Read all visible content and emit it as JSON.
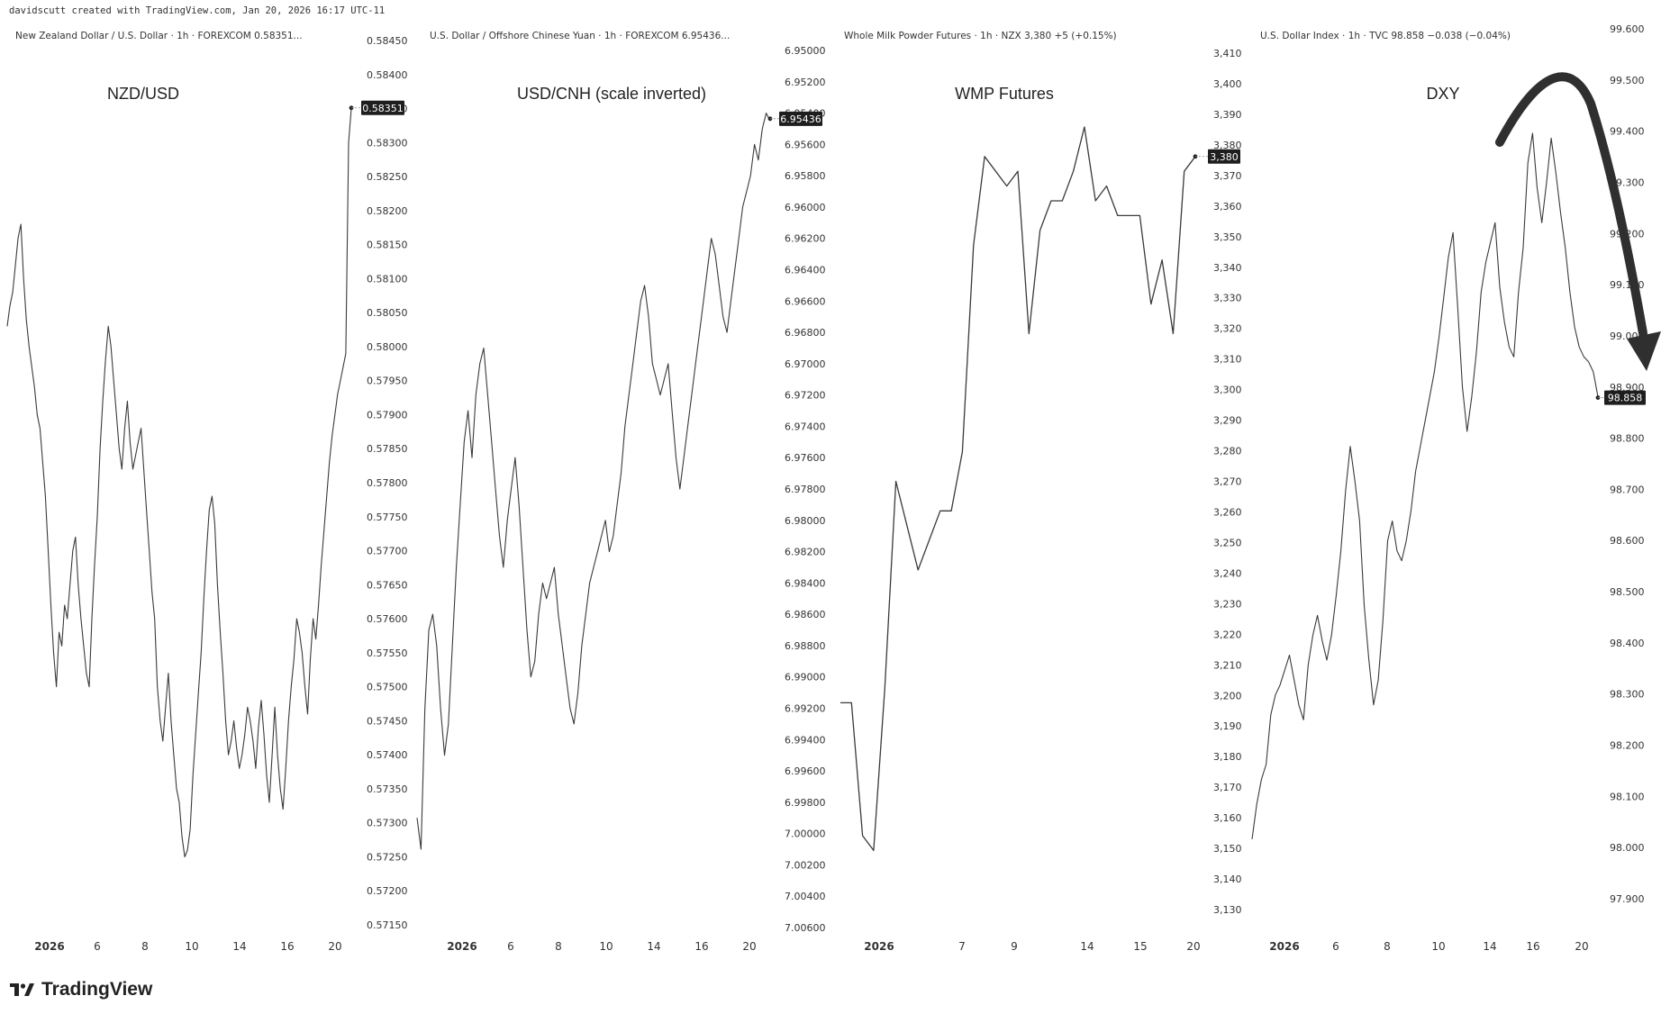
{
  "header": {
    "attribution": "davidscutt created with TradingView.com, Jan 20, 2026 16:17 UTC-11"
  },
  "footer": {
    "brand": "TradingView",
    "logo_icon": "tradingview-logo-icon"
  },
  "panels": [
    {
      "legend": "New Zealand Dollar / U.S. Dollar · 1h · FOREXCOM  0.58351...",
      "title": "NZD/USD",
      "last_label": "0.58351"
    },
    {
      "legend": "U.S. Dollar / Offshore Chinese Yuan · 1h · FOREXCOM  6.95436...",
      "title": "USD/CNH (scale inverted)",
      "last_label": "6.95436"
    },
    {
      "legend": "Whole Milk Powder Futures · 1h · NZX  3,380  +5 (+0.15%)",
      "title": "WMP Futures",
      "last_label": "3,380"
    },
    {
      "legend": "U.S. Dollar Index · 1h · TVC  98.858  −0.038 (−0.04%)",
      "title": "DXY",
      "last_label": "98.858",
      "annotation": "curved-down-arrow"
    }
  ],
  "chart_data": [
    {
      "type": "line",
      "title": "NZD/USD",
      "x_ticks": [
        "2026",
        "6",
        "8",
        "10",
        "14",
        "16",
        "20"
      ],
      "y_ticks": [
        "0.58450",
        "0.58400",
        "0.58350",
        "0.58300",
        "0.58250",
        "0.58200",
        "0.58150",
        "0.58100",
        "0.58050",
        "0.58000",
        "0.57950",
        "0.57900",
        "0.57850",
        "0.57800",
        "0.57750",
        "0.57700",
        "0.57650",
        "0.57600",
        "0.57550",
        "0.57500",
        "0.57450",
        "0.57400",
        "0.57350",
        "0.57300",
        "0.57250",
        "0.57200",
        "0.57150"
      ],
      "ylim": [
        0.5715,
        0.5845
      ],
      "last_value": 0.58351,
      "series": [
        {
          "values": [
            0.5803,
            0.5806,
            0.5808,
            0.5812,
            0.5816,
            0.5818,
            0.581,
            0.5804,
            0.58,
            0.5797,
            0.5794,
            0.579,
            0.5788,
            0.5783,
            0.5778,
            0.577,
            0.5762,
            0.5755,
            0.575,
            0.5758,
            0.5756,
            0.5762,
            0.576,
            0.5765,
            0.577,
            0.5772,
            0.5765,
            0.576,
            0.5756,
            0.5752,
            0.575,
            0.576,
            0.5768,
            0.5775,
            0.5785,
            0.5792,
            0.5798,
            0.5803,
            0.58,
            0.5795,
            0.579,
            0.5785,
            0.5782,
            0.5788,
            0.5792,
            0.5786,
            0.5782,
            0.5784,
            0.5786,
            0.5788,
            0.5782,
            0.5776,
            0.577,
            0.5764,
            0.576,
            0.575,
            0.5745,
            0.5742,
            0.5747,
            0.5752,
            0.5745,
            0.574,
            0.5735,
            0.5733,
            0.5728,
            0.5725,
            0.5726,
            0.5729,
            0.5737,
            0.5743,
            0.5749,
            0.5755,
            0.5763,
            0.577,
            0.5776,
            0.5778,
            0.5774,
            0.5765,
            0.5758,
            0.5752,
            0.5745,
            0.574,
            0.5742,
            0.5745,
            0.5741,
            0.5738,
            0.574,
            0.5743,
            0.5747,
            0.5745,
            0.5742,
            0.5738,
            0.5744,
            0.5748,
            0.5743,
            0.5737,
            0.5733,
            0.574,
            0.5747,
            0.574,
            0.5735,
            0.5732,
            0.5738,
            0.5745,
            0.575,
            0.5754,
            0.576,
            0.5758,
            0.5755,
            0.575,
            0.5746,
            0.5754,
            0.576,
            0.5757,
            0.5762,
            0.5768,
            0.5773,
            0.5778,
            0.5783,
            0.5787,
            0.579,
            0.5793,
            0.5795,
            0.5797,
            0.5799,
            0.583,
            0.5835
          ]
        }
      ]
    },
    {
      "type": "line",
      "title": "USD/CNH (scale inverted)",
      "y_inverted": true,
      "x_ticks": [
        "2026",
        "6",
        "8",
        "10",
        "14",
        "16",
        "20"
      ],
      "y_ticks": [
        "6.95000",
        "6.95200",
        "6.95400",
        "6.95600",
        "6.95800",
        "6.96000",
        "6.96200",
        "6.96400",
        "6.96600",
        "6.96800",
        "6.97000",
        "6.97200",
        "6.97400",
        "6.97600",
        "6.97800",
        "6.98000",
        "6.98200",
        "6.98400",
        "6.98600",
        "6.98800",
        "6.99000",
        "6.99200",
        "6.99400",
        "6.99600",
        "6.99800",
        "7.00000",
        "7.00200",
        "7.00400",
        "7.00600"
      ],
      "ylim": [
        6.95,
        7.006
      ],
      "last_value": 6.95436,
      "series": [
        {
          "values": [
            6.999,
            7.001,
            6.992,
            6.987,
            6.986,
            6.988,
            6.992,
            6.995,
            6.993,
            6.988,
            6.983,
            6.979,
            6.975,
            6.973,
            6.976,
            6.972,
            6.97,
            6.969,
            6.972,
            6.975,
            6.978,
            6.981,
            6.983,
            6.98,
            6.978,
            6.976,
            6.979,
            6.983,
            6.987,
            6.99,
            6.989,
            6.986,
            6.984,
            6.985,
            6.984,
            6.983,
            6.986,
            6.988,
            6.99,
            6.992,
            6.993,
            6.991,
            6.988,
            6.986,
            6.984,
            6.983,
            6.982,
            6.981,
            6.98,
            6.982,
            6.981,
            6.979,
            6.977,
            6.974,
            6.972,
            6.97,
            6.968,
            6.966,
            6.965,
            6.967,
            6.97,
            6.971,
            6.972,
            6.971,
            6.97,
            6.973,
            6.976,
            6.978,
            6.976,
            6.974,
            6.972,
            6.97,
            6.968,
            6.966,
            6.964,
            6.962,
            6.963,
            6.965,
            6.967,
            6.968,
            6.966,
            6.964,
            6.962,
            6.96,
            6.959,
            6.958,
            6.956,
            6.957,
            6.955,
            6.954,
            6.9545
          ]
        }
      ]
    },
    {
      "type": "line",
      "title": "WMP Futures",
      "x_ticks": [
        "2026",
        "7",
        "9",
        "14",
        "15",
        "20"
      ],
      "y_ticks": [
        "3,410",
        "3,400",
        "3,390",
        "3,380",
        "3,370",
        "3,360",
        "3,350",
        "3,340",
        "3,330",
        "3,320",
        "3,310",
        "3,300",
        "3,290",
        "3,280",
        "3,270",
        "3,260",
        "3,250",
        "3,240",
        "3,230",
        "3,220",
        "3,210",
        "3,200",
        "3,190",
        "3,180",
        "3,170",
        "3,160",
        "3,150",
        "3,140",
        "3,130"
      ],
      "ylim": [
        3125,
        3415
      ],
      "last_value": 3380,
      "series": [
        {
          "values": [
            3195,
            3195,
            3150,
            3145,
            3200,
            3270,
            3255,
            3240,
            3250,
            3260,
            3260,
            3280,
            3350,
            3380,
            3375,
            3370,
            3375,
            3320,
            3355,
            3365,
            3365,
            3375,
            3390,
            3365,
            3370,
            3360,
            3360,
            3360,
            3330,
            3345,
            3320,
            3375,
            3380
          ]
        }
      ]
    },
    {
      "type": "line",
      "title": "DXY",
      "x_ticks": [
        "2026",
        "6",
        "8",
        "10",
        "14",
        "16",
        "20"
      ],
      "y_ticks": [
        "99.600",
        "99.500",
        "99.400",
        "99.300",
        "99.200",
        "99.100",
        "99.000",
        "98.900",
        "98.800",
        "98.700",
        "98.600",
        "98.500",
        "98.400",
        "98.300",
        "98.200",
        "98.100",
        "98.000",
        "97.900"
      ],
      "ylim": [
        97.85,
        99.6
      ],
      "last_value": 98.858,
      "series": [
        {
          "values": [
            97.97,
            98.04,
            98.09,
            98.12,
            98.22,
            98.26,
            98.28,
            98.31,
            98.34,
            98.29,
            98.24,
            98.21,
            98.32,
            98.38,
            98.42,
            98.37,
            98.33,
            98.38,
            98.46,
            98.55,
            98.67,
            98.76,
            98.69,
            98.61,
            98.44,
            98.33,
            98.24,
            98.29,
            98.41,
            98.57,
            98.61,
            98.55,
            98.53,
            98.57,
            98.63,
            98.71,
            98.76,
            98.81,
            98.86,
            98.91,
            98.98,
            99.06,
            99.14,
            99.19,
            99.04,
            98.88,
            98.79,
            98.86,
            98.95,
            99.07,
            99.13,
            99.17,
            99.21,
            99.08,
            99.01,
            98.96,
            98.94,
            99.07,
            99.16,
            99.33,
            99.39,
            99.28,
            99.21,
            99.29,
            99.38,
            99.31,
            99.23,
            99.16,
            99.07,
            99.0,
            98.96,
            98.94,
            98.93,
            98.91,
            98.86
          ]
        }
      ]
    }
  ]
}
